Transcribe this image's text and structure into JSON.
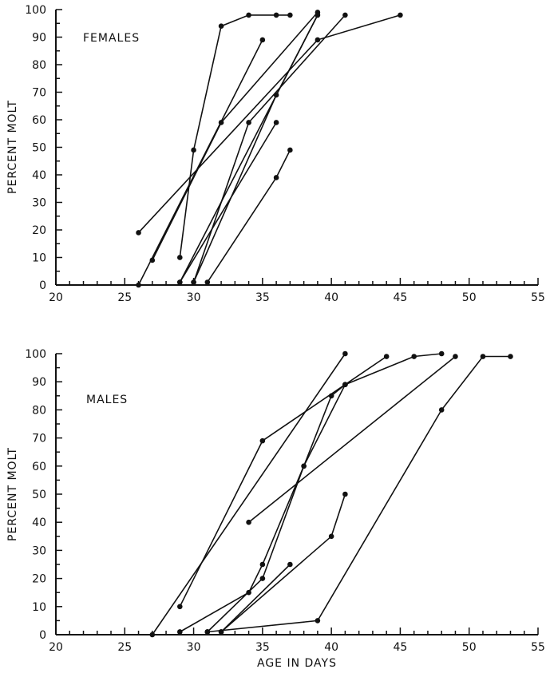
{
  "chart_data": [
    {
      "type": "line",
      "panel_label": "FEMALES",
      "ylabel": "PERCENT MOLT",
      "xlabel": "",
      "xlim": [
        20,
        55
      ],
      "ylim": [
        0,
        100
      ],
      "x_ticks": [
        20,
        25,
        30,
        35,
        40,
        45,
        50,
        55
      ],
      "y_ticks": [
        0,
        10,
        20,
        30,
        40,
        50,
        60,
        70,
        80,
        90,
        100
      ],
      "grid": false,
      "series": [
        {
          "x": [
            26,
            39,
            45
          ],
          "y": [
            19,
            89,
            98
          ]
        },
        {
          "x": [
            26,
            35
          ],
          "y": [
            0,
            89
          ]
        },
        {
          "x": [
            27,
            32,
            39
          ],
          "y": [
            9,
            59,
            99
          ]
        },
        {
          "x": [
            29,
            39
          ],
          "y": [
            1,
            98
          ]
        },
        {
          "x": [
            29,
            30,
            32,
            34,
            36,
            37
          ],
          "y": [
            10,
            49,
            94,
            98,
            98,
            98
          ]
        },
        {
          "x": [
            29,
            36
          ],
          "y": [
            1,
            59
          ]
        },
        {
          "x": [
            30,
            34,
            41
          ],
          "y": [
            1,
            59,
            98
          ]
        },
        {
          "x": [
            30,
            36,
            39
          ],
          "y": [
            1,
            69,
            98
          ]
        },
        {
          "x": [
            31,
            36,
            37
          ],
          "y": [
            1,
            39,
            49
          ]
        }
      ]
    },
    {
      "type": "line",
      "panel_label": "MALES",
      "ylabel": "PERCENT MOLT",
      "xlabel": "AGE IN DAYS",
      "xlim": [
        20,
        55
      ],
      "ylim": [
        0,
        100
      ],
      "x_ticks": [
        20,
        25,
        30,
        35,
        40,
        45,
        50,
        55
      ],
      "y_ticks": [
        0,
        10,
        20,
        30,
        40,
        50,
        60,
        70,
        80,
        90,
        100
      ],
      "grid": false,
      "series": [
        {
          "x": [
            27,
            41
          ],
          "y": [
            0,
            100
          ]
        },
        {
          "x": [
            29,
            35,
            41,
            44
          ],
          "y": [
            10,
            69,
            89,
            99
          ]
        },
        {
          "x": [
            29,
            34,
            35,
            38,
            41,
            46,
            48
          ],
          "y": [
            1,
            15,
            25,
            60,
            89,
            99,
            100
          ]
        },
        {
          "x": [
            31,
            35,
            38,
            40,
            41
          ],
          "y": [
            1,
            20,
            60,
            85,
            89
          ]
        },
        {
          "x": [
            32,
            37
          ],
          "y": [
            1,
            25
          ]
        },
        {
          "x": [
            32,
            40,
            41
          ],
          "y": [
            1,
            35,
            50
          ]
        },
        {
          "x": [
            34,
            49
          ],
          "y": [
            40,
            99
          ]
        },
        {
          "x": [
            31,
            39,
            48,
            51,
            53
          ],
          "y": [
            1,
            5,
            80,
            99,
            99
          ]
        }
      ]
    }
  ]
}
